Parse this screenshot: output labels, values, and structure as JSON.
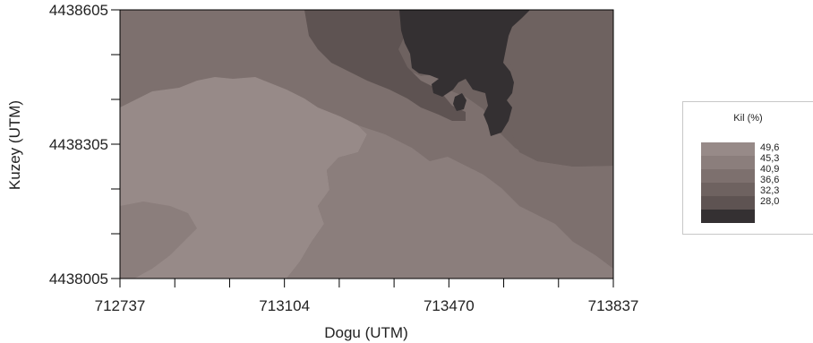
{
  "chart_data": {
    "type": "heatmap",
    "title": "",
    "xlabel": "Dogu (UTM)",
    "ylabel": "Kuzey (UTM)",
    "xlim": [
      712737,
      713837
    ],
    "ylim": [
      4438005,
      4438605
    ],
    "x_tick_labels": [
      "712737",
      "713104",
      "713470",
      "713837"
    ],
    "y_tick_labels": [
      "4438605",
      "4438305",
      "4438005"
    ],
    "legend": {
      "title": "Kil (%)",
      "levels": [
        "49,6",
        "45,3",
        "40,9",
        "36,6",
        "32,3",
        "28,0"
      ],
      "colors": [
        "#978a88",
        "#8b7e7c",
        "#7d706e",
        "#6e6260",
        "#5e5352",
        "#343032"
      ]
    },
    "colors": {
      "lowest_class": "#343032",
      "class_32_36": "#5e5352",
      "class_36_41": "#6e6260",
      "class_41_45": "#7d706e",
      "class_45_50": "#8b7e7c",
      "highest_class": "#978a88"
    }
  }
}
